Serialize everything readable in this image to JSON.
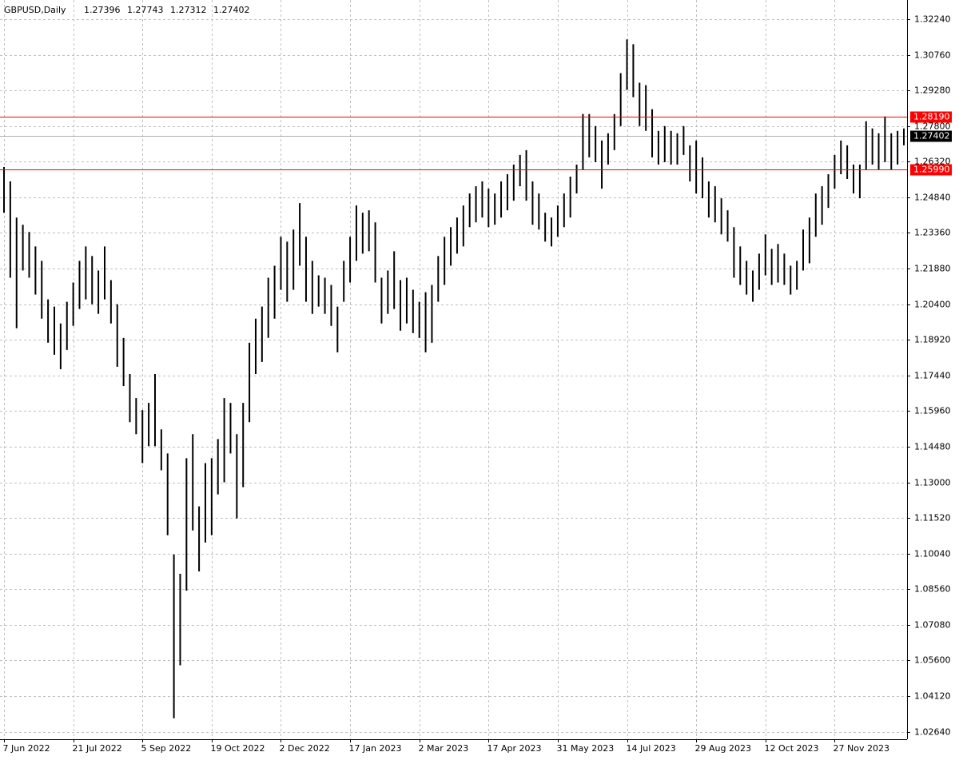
{
  "chart_data": {
    "type": "bar-ohlc",
    "title": "GBPUSD,Daily",
    "ohlc": [
      1.27396,
      1.27743,
      1.27312,
      1.27402
    ],
    "color": "#000000",
    "grid": true,
    "ylim": [
      1.02328,
      1.32904
    ],
    "yticks": [
      {
        "value": 1.3224,
        "label": "1.32240"
      },
      {
        "value": 1.3076,
        "label": "1.30760"
      },
      {
        "value": 1.2928,
        "label": "1.29280"
      },
      {
        "value": 1.278,
        "label": "1.27800"
      },
      {
        "value": 1.2632,
        "label": "1.26320"
      },
      {
        "value": 1.2484,
        "label": "1.24840"
      },
      {
        "value": 1.2336,
        "label": "1.23360"
      },
      {
        "value": 1.2188,
        "label": "1.21880"
      },
      {
        "value": 1.204,
        "label": "1.20400"
      },
      {
        "value": 1.1892,
        "label": "1.18920"
      },
      {
        "value": 1.1744,
        "label": "1.17440"
      },
      {
        "value": 1.1596,
        "label": "1.15960"
      },
      {
        "value": 1.1448,
        "label": "1.14480"
      },
      {
        "value": 1.13,
        "label": "1.13000"
      },
      {
        "value": 1.1152,
        "label": "1.11520"
      },
      {
        "value": 1.1004,
        "label": "1.10040"
      },
      {
        "value": 1.0856,
        "label": "1.08560"
      },
      {
        "value": 1.0708,
        "label": "1.07080"
      },
      {
        "value": 1.056,
        "label": "1.05600"
      },
      {
        "value": 1.0412,
        "label": "1.04120"
      },
      {
        "value": 1.0264,
        "label": "1.02640"
      }
    ],
    "levels": [
      {
        "value": 1.2819,
        "label": "1.28190",
        "color": "#ff0000"
      },
      {
        "value": 1.2599,
        "label": "1.25990",
        "color": "#ff0000"
      },
      {
        "value": 1.27402,
        "label": "1.27402",
        "color": "#000000"
      }
    ],
    "categories": [
      "7 Jun 2022",
      null,
      null,
      null,
      null,
      null,
      null,
      null,
      null,
      null,
      null,
      "21 Jul 2022",
      null,
      null,
      null,
      null,
      null,
      null,
      null,
      null,
      null,
      null,
      "5 Sep 2022",
      null,
      null,
      null,
      null,
      null,
      null,
      null,
      null,
      null,
      null,
      "19 Oct 2022",
      null,
      null,
      null,
      null,
      null,
      null,
      null,
      null,
      null,
      null,
      "2 Dec 2022",
      null,
      null,
      null,
      null,
      null,
      null,
      null,
      null,
      null,
      null,
      "17 Jan 2023",
      null,
      null,
      null,
      null,
      null,
      null,
      null,
      null,
      null,
      null,
      "2 Mar 2023",
      null,
      null,
      null,
      null,
      null,
      null,
      null,
      null,
      null,
      null,
      "17 Apr 2023",
      null,
      null,
      null,
      null,
      null,
      null,
      null,
      null,
      null,
      null,
      "31 May 2023",
      null,
      null,
      null,
      null,
      null,
      null,
      null,
      null,
      null,
      null,
      "14 Jul 2023",
      null,
      null,
      null,
      null,
      null,
      null,
      null,
      null,
      null,
      null,
      "29 Aug 2023",
      null,
      null,
      null,
      null,
      null,
      null,
      null,
      null,
      null,
      null,
      "12 Oct 2023",
      null,
      null,
      null,
      null,
      null,
      null,
      null,
      null,
      null,
      null,
      "27 Nov 2023",
      null,
      null,
      null,
      null,
      null,
      null,
      null,
      null,
      null,
      null,
      null
    ],
    "high": [
      1.261,
      1.255,
      1.24,
      1.237,
      1.234,
      1.228,
      1.222,
      1.206,
      1.203,
      1.196,
      1.205,
      1.213,
      1.222,
      1.228,
      1.224,
      1.218,
      1.228,
      1.214,
      1.204,
      1.19,
      1.175,
      1.165,
      1.16,
      1.163,
      1.175,
      1.152,
      1.142,
      1.1,
      1.092,
      1.14,
      1.15,
      1.12,
      1.138,
      1.14,
      1.148,
      1.165,
      1.163,
      1.15,
      1.163,
      1.188,
      1.198,
      1.203,
      1.215,
      1.22,
      1.232,
      1.23,
      1.235,
      1.246,
      1.232,
      1.222,
      1.216,
      1.215,
      1.212,
      1.203,
      1.222,
      1.232,
      1.245,
      1.242,
      1.243,
      1.238,
      1.215,
      1.218,
      1.226,
      1.214,
      1.215,
      1.21,
      1.205,
      1.209,
      1.212,
      1.224,
      1.232,
      1.236,
      1.24,
      1.245,
      1.25,
      1.253,
      1.255,
      1.252,
      1.25,
      1.255,
      1.258,
      1.262,
      1.266,
      1.268,
      1.255,
      1.25,
      1.242,
      1.24,
      1.245,
      1.25,
      1.257,
      1.262,
      1.283,
      1.283,
      1.278,
      1.272,
      1.275,
      1.283,
      1.3,
      1.314,
      1.312,
      1.296,
      1.295,
      1.285,
      1.276,
      1.278,
      1.276,
      1.275,
      1.278,
      1.27,
      1.272,
      1.265,
      1.255,
      1.253,
      1.248,
      1.243,
      1.236,
      1.228,
      1.222,
      1.218,
      1.225,
      1.233,
      1.227,
      1.229,
      1.225,
      1.22,
      1.222,
      1.235,
      1.24,
      1.25,
      1.253,
      1.258,
      1.266,
      1.272,
      1.27,
      1.262,
      1.262,
      1.28,
      1.277,
      1.275,
      1.282,
      1.275,
      1.276,
      1.277
    ],
    "low": [
      1.242,
      1.215,
      1.194,
      1.218,
      1.215,
      1.208,
      1.198,
      1.188,
      1.183,
      1.177,
      1.185,
      1.195,
      1.202,
      1.206,
      1.204,
      1.2,
      1.206,
      1.196,
      1.178,
      1.17,
      1.155,
      1.15,
      1.138,
      1.145,
      1.145,
      1.135,
      1.108,
      1.032,
      1.054,
      1.085,
      1.11,
      1.093,
      1.105,
      1.108,
      1.125,
      1.13,
      1.142,
      1.115,
      1.128,
      1.155,
      1.175,
      1.18,
      1.19,
      1.198,
      1.21,
      1.205,
      1.21,
      1.22,
      1.205,
      1.2,
      1.203,
      1.2,
      1.195,
      1.184,
      1.205,
      1.213,
      1.222,
      1.225,
      1.226,
      1.213,
      1.196,
      1.2,
      1.202,
      1.193,
      1.196,
      1.192,
      1.19,
      1.184,
      1.188,
      1.205,
      1.212,
      1.22,
      1.225,
      1.228,
      1.236,
      1.238,
      1.24,
      1.236,
      1.237,
      1.24,
      1.243,
      1.247,
      1.253,
      1.247,
      1.237,
      1.235,
      1.23,
      1.228,
      1.232,
      1.236,
      1.24,
      1.25,
      1.26,
      1.265,
      1.263,
      1.252,
      1.262,
      1.268,
      1.278,
      1.293,
      1.29,
      1.278,
      1.276,
      1.265,
      1.262,
      1.263,
      1.262,
      1.262,
      1.266,
      1.255,
      1.25,
      1.248,
      1.24,
      1.238,
      1.233,
      1.23,
      1.215,
      1.212,
      1.208,
      1.205,
      1.21,
      1.216,
      1.212,
      1.213,
      1.212,
      1.208,
      1.21,
      1.218,
      1.221,
      1.232,
      1.237,
      1.244,
      1.252,
      1.258,
      1.256,
      1.25,
      1.248,
      1.26,
      1.262,
      1.26,
      1.263,
      1.26,
      1.262,
      1.27
    ]
  }
}
